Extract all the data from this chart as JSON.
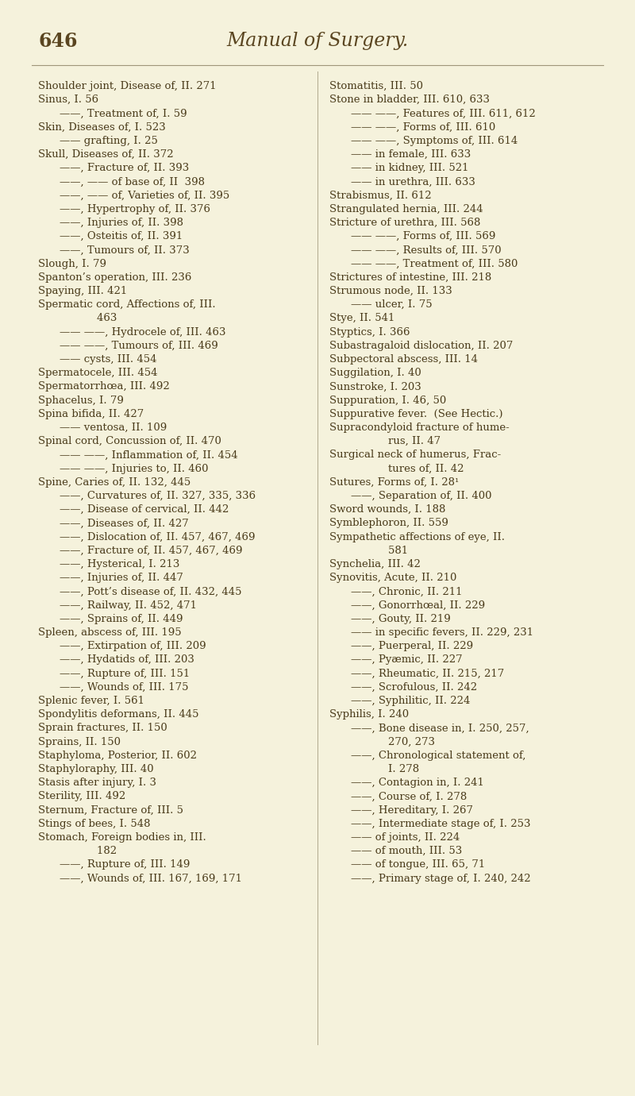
{
  "page_number": "646",
  "title": "Manual of Surgery.",
  "bg_color": "#f5f2dc",
  "text_color": "#4a3b1a",
  "title_color": "#5a4520",
  "fig_width": 8.0,
  "fig_height": 13.8,
  "dpi": 100,
  "left_column": [
    {
      "text": "Shoulder joint, Disease of, II. 271",
      "indent": 0
    },
    {
      "text": "Sinus, I. 56",
      "indent": 0
    },
    {
      "text": "——, Treatment of, I. 59",
      "indent": 1
    },
    {
      "text": "Skin, Diseases of, I. 523",
      "indent": 0
    },
    {
      "text": "—— grafting, I. 25",
      "indent": 1
    },
    {
      "text": "Skull, Diseases of, II. 372",
      "indent": 0
    },
    {
      "text": "——, Fracture of, II. 393",
      "indent": 1
    },
    {
      "text": "——, —— of base of, II  398",
      "indent": 1
    },
    {
      "text": "——, —— of, Varieties of, II. 395",
      "indent": 1
    },
    {
      "text": "——, Hypertrophy of, II. 376",
      "indent": 1
    },
    {
      "text": "——, Injuries of, II. 398",
      "indent": 1
    },
    {
      "text": "——, Osteitis of, II. 391",
      "indent": 1
    },
    {
      "text": "——, Tumours of, II. 373",
      "indent": 1
    },
    {
      "text": "Slough, I. 79",
      "indent": 0
    },
    {
      "text": "Spanton’s operation, III. 236",
      "indent": 0
    },
    {
      "text": "Spaying, III. 421",
      "indent": 0
    },
    {
      "text": "Spermatic cord, Affections of, III.",
      "indent": 0
    },
    {
      "text": "    463",
      "indent": 2
    },
    {
      "text": "—— ——, Hydrocele of, III. 463",
      "indent": 1
    },
    {
      "text": "—— ——, Tumours of, III. 469",
      "indent": 1
    },
    {
      "text": "—— cysts, III. 454",
      "indent": 1
    },
    {
      "text": "Spermatocele, III. 454",
      "indent": 0
    },
    {
      "text": "Spermatorrhœa, III. 492",
      "indent": 0
    },
    {
      "text": "Sphacelus, I. 79",
      "indent": 0
    },
    {
      "text": "Spina bifida, II. 427",
      "indent": 0
    },
    {
      "text": "—— ventosa, II. 109",
      "indent": 1
    },
    {
      "text": "Spinal cord, Concussion of, II. 470",
      "indent": 0
    },
    {
      "text": "—— ——, Inflammation of, II. 454",
      "indent": 1
    },
    {
      "text": "—— ——, Injuries to, II. 460",
      "indent": 1
    },
    {
      "text": "Spine, Caries of, II. 132, 445",
      "indent": 0
    },
    {
      "text": "——, Curvatures of, II. 327, 335, 336",
      "indent": 1
    },
    {
      "text": "——, Disease of cervical, II. 442",
      "indent": 1
    },
    {
      "text": "——, Diseases of, II. 427",
      "indent": 1
    },
    {
      "text": "——, Dislocation of, II. 457, 467, 469",
      "indent": 1
    },
    {
      "text": "——, Fracture of, II. 457, 467, 469",
      "indent": 1
    },
    {
      "text": "——, Hysterical, I. 213",
      "indent": 1
    },
    {
      "text": "——, Injuries of, II. 447",
      "indent": 1
    },
    {
      "text": "——, Pott’s disease of, II. 432, 445",
      "indent": 1
    },
    {
      "text": "——, Railway, II. 452, 471",
      "indent": 1
    },
    {
      "text": "——, Sprains of, II. 449",
      "indent": 1
    },
    {
      "text": "Spleen, abscess of, III. 195",
      "indent": 0
    },
    {
      "text": "——, Extirpation of, III. 209",
      "indent": 1
    },
    {
      "text": "——, Hydatids of, III. 203",
      "indent": 1
    },
    {
      "text": "——, Rupture of, III. 151",
      "indent": 1
    },
    {
      "text": "——, Wounds of, III. 175",
      "indent": 1
    },
    {
      "text": "Splenic fever, I. 561",
      "indent": 0
    },
    {
      "text": "Spondylitis deformans, II. 445",
      "indent": 0
    },
    {
      "text": "Sprain fractures, II. 150",
      "indent": 0
    },
    {
      "text": "Sprains, II. 150",
      "indent": 0
    },
    {
      "text": "Staphyloma, Posterior, II. 602",
      "indent": 0
    },
    {
      "text": "Staphyloraphy, III. 40",
      "indent": 0
    },
    {
      "text": "Stasis after injury, I. 3",
      "indent": 0
    },
    {
      "text": "Sterility, III. 492",
      "indent": 0
    },
    {
      "text": "Sternum, Fracture of, III. 5",
      "indent": 0
    },
    {
      "text": "Stings of bees, I. 548",
      "indent": 0
    },
    {
      "text": "Stomach, Foreign bodies in, III.",
      "indent": 0
    },
    {
      "text": "    182",
      "indent": 2
    },
    {
      "text": "——, Rupture of, III. 149",
      "indent": 1
    },
    {
      "text": "——, Wounds of, III. 167, 169, 171",
      "indent": 1
    }
  ],
  "right_column": [
    {
      "text": "Stomatitis, III. 50",
      "indent": 0
    },
    {
      "text": "Stone in bladder, III. 610, 633",
      "indent": 0
    },
    {
      "text": "—— ——, Features of, III. 611, 612",
      "indent": 1
    },
    {
      "text": "—— ——, Forms of, III. 610",
      "indent": 1
    },
    {
      "text": "—— ——, Symptoms of, III. 614",
      "indent": 1
    },
    {
      "text": "—— in female, III. 633",
      "indent": 1
    },
    {
      "text": "—— in kidney, III. 521",
      "indent": 1
    },
    {
      "text": "—— in urethra, III. 633",
      "indent": 1
    },
    {
      "text": "Strabismus, II. 612",
      "indent": 0
    },
    {
      "text": "Strangulated hernia, III. 244",
      "indent": 0
    },
    {
      "text": "Stricture of urethra, III. 568",
      "indent": 0
    },
    {
      "text": "—— ——, Forms of, III. 569",
      "indent": 1
    },
    {
      "text": "—— ——, Results of, III. 570",
      "indent": 1
    },
    {
      "text": "—— ——, Treatment of, III. 580",
      "indent": 1
    },
    {
      "text": "Strictures of intestine, III. 218",
      "indent": 0
    },
    {
      "text": "Strumous node, II. 133",
      "indent": 0
    },
    {
      "text": "—— ulcer, I. 75",
      "indent": 1
    },
    {
      "text": "Stye, II. 541",
      "indent": 0
    },
    {
      "text": "Styptics, I. 366",
      "indent": 0
    },
    {
      "text": "Subastragaloid dislocation, II. 207",
      "indent": 0
    },
    {
      "text": "Subpectoral abscess, III. 14",
      "indent": 0
    },
    {
      "text": "Suggilation, I. 40",
      "indent": 0
    },
    {
      "text": "Sunstroke, I. 203",
      "indent": 0
    },
    {
      "text": "Suppuration, I. 46, 50",
      "indent": 0
    },
    {
      "text": "Suppurative fever.  (See Hectic.)",
      "indent": 0
    },
    {
      "text": "Supracondyloid fracture of hume-",
      "indent": 0
    },
    {
      "text": "    rus, II. 47",
      "indent": 2
    },
    {
      "text": "Surgical neck of humerus, Frac-",
      "indent": 0
    },
    {
      "text": "    tures of, II. 42",
      "indent": 2
    },
    {
      "text": "Sutures, Forms of, I. 28¹",
      "indent": 0
    },
    {
      "text": "——, Separation of, II. 400",
      "indent": 1
    },
    {
      "text": "Sword wounds, I. 188",
      "indent": 0
    },
    {
      "text": "Symblephoron, II. 559",
      "indent": 0
    },
    {
      "text": "Sympathetic affections of eye, II.",
      "indent": 0
    },
    {
      "text": "    581",
      "indent": 2
    },
    {
      "text": "Synchelia, III. 42",
      "indent": 0
    },
    {
      "text": "Synovitis, Acute, II. 210",
      "indent": 0
    },
    {
      "text": "——, Chronic, II. 211",
      "indent": 1
    },
    {
      "text": "——, Gonorrhœal, II. 229",
      "indent": 1
    },
    {
      "text": "——, Gouty, II. 219",
      "indent": 1
    },
    {
      "text": "—— in specific fevers, II. 229, 231",
      "indent": 1
    },
    {
      "text": "——, Puerperal, II. 229",
      "indent": 1
    },
    {
      "text": "——, Pyæmic, II. 227",
      "indent": 1
    },
    {
      "text": "——, Rheumatic, II. 215, 217",
      "indent": 1
    },
    {
      "text": "——, Scrofulous, II. 242",
      "indent": 1
    },
    {
      "text": "——, Syphilitic, II. 224",
      "indent": 1
    },
    {
      "text": "Syphilis, I. 240",
      "indent": 0
    },
    {
      "text": "——, Bone disease in, I. 250, 257,",
      "indent": 1
    },
    {
      "text": "    270, 273",
      "indent": 2
    },
    {
      "text": "——, Chronological statement of,",
      "indent": 1
    },
    {
      "text": "    I. 278",
      "indent": 2
    },
    {
      "text": "——, Contagion in, I. 241",
      "indent": 1
    },
    {
      "text": "——, Course of, I. 278",
      "indent": 1
    },
    {
      "text": "——, Hereditary, I. 267",
      "indent": 1
    },
    {
      "text": "——, Intermediate stage of, I. 253",
      "indent": 1
    },
    {
      "text": "—— of joints, II. 224",
      "indent": 1
    },
    {
      "text": "—— of mouth, III. 53",
      "indent": 1
    },
    {
      "text": "—— of tongue, III. 65, 71",
      "indent": 1
    },
    {
      "text": "——, Primary stage of, I. 240, 242",
      "indent": 1
    }
  ]
}
